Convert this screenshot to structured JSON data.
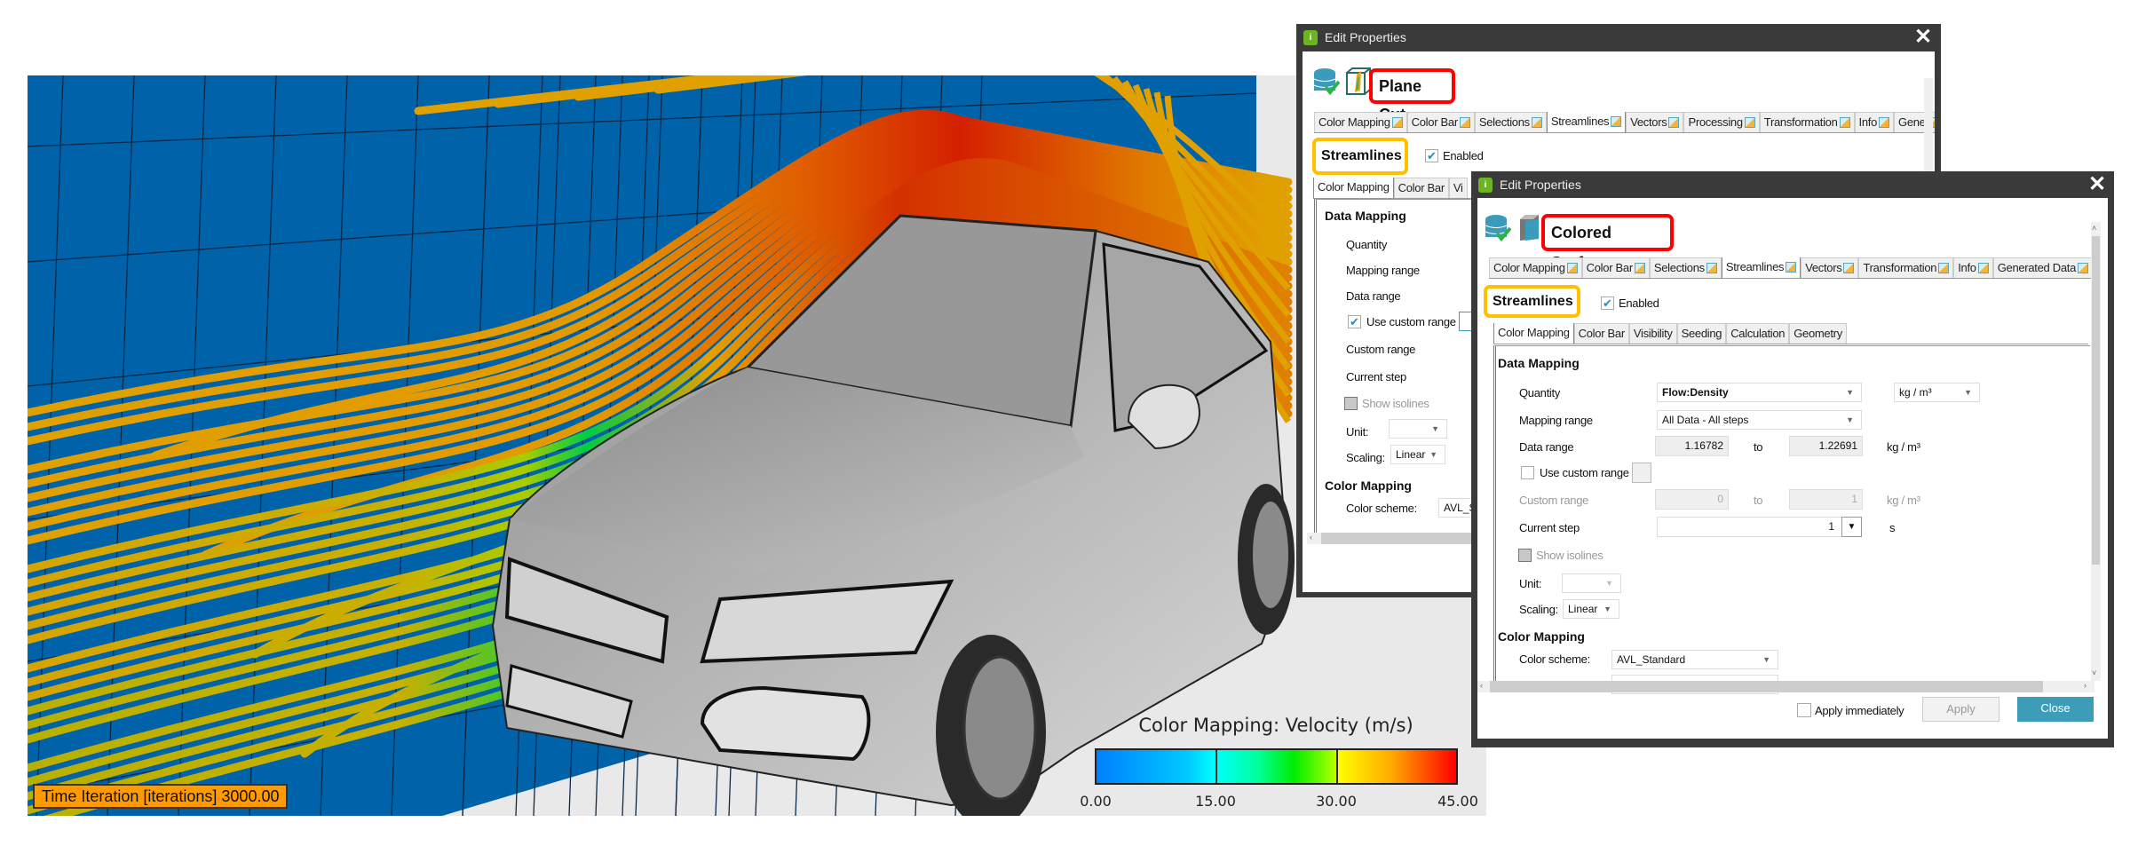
{
  "viewport": {
    "time_label": "Time Iteration [iterations] 3000.00",
    "color_bar": {
      "title": "Color Mapping: Velocity (m/s)",
      "ticks": [
        "0.00",
        "15.00",
        "30.00",
        "45.00"
      ],
      "range": [
        0,
        45
      ],
      "colors": [
        "#0080ff",
        "#00ffff",
        "#00ee00",
        "#ffff00",
        "#ff0000"
      ]
    }
  },
  "dialog_plane_cut": {
    "window_title": "Edit Properties",
    "object_title": "Plane Cut",
    "tabs": [
      {
        "label": "Color Mapping",
        "active": false
      },
      {
        "label": "Color Bar",
        "active": false
      },
      {
        "label": "Selections",
        "active": false
      },
      {
        "label": "Streamlines",
        "active": true
      },
      {
        "label": "Vectors",
        "active": false
      },
      {
        "label": "Processing",
        "active": false
      },
      {
        "label": "Transformation",
        "active": false
      },
      {
        "label": "Info",
        "active": false
      },
      {
        "label": "Gene",
        "active": false
      }
    ],
    "section_title": "Streamlines",
    "enabled_label": "Enabled",
    "enabled": true,
    "subtabs": [
      "Color Mapping",
      "Color Bar",
      "Vi"
    ],
    "data_mapping_heading": "Data Mapping",
    "quantity_label": "Quantity",
    "mapping_range_label": "Mapping range",
    "data_range_label": "Data range",
    "use_custom_range_label": "Use custom range",
    "use_custom_range": true,
    "custom_range_label": "Custom range",
    "current_step_label": "Current step",
    "show_isolines_label": "Show isolines",
    "unit_label": "Unit:",
    "scaling_label": "Scaling:",
    "scaling_value": "Linear",
    "color_mapping_heading": "Color Mapping",
    "color_scheme_label": "Color scheme:",
    "color_scheme_value": "AVL_S"
  },
  "dialog_colored_surface": {
    "window_title": "Edit Properties",
    "object_title": "Colored Surface",
    "tabs": [
      {
        "label": "Color Mapping",
        "active": false
      },
      {
        "label": "Color Bar",
        "active": false
      },
      {
        "label": "Selections",
        "active": false
      },
      {
        "label": "Streamlines",
        "active": true
      },
      {
        "label": "Vectors",
        "active": false
      },
      {
        "label": "Transformation",
        "active": false
      },
      {
        "label": "Info",
        "active": false
      },
      {
        "label": "Generated Data",
        "active": false
      }
    ],
    "section_title": "Streamlines",
    "enabled_label": "Enabled",
    "enabled": true,
    "subtabs": [
      "Color Mapping",
      "Color Bar",
      "Visibility",
      "Seeding",
      "Calculation",
      "Geometry"
    ],
    "data_mapping_heading": "Data Mapping",
    "quantity_label": "Quantity",
    "quantity_value": "Flow:Density",
    "quantity_unit": "kg / m³",
    "mapping_range_label": "Mapping range",
    "mapping_range_value": "All Data - All steps",
    "data_range_label": "Data range",
    "data_range_min": "1.16782",
    "data_range_max": "1.22691",
    "to_label": "to",
    "unit_text": "kg / m³",
    "use_custom_range_label": "Use custom range",
    "use_custom_range": false,
    "custom_range_label": "Custom range",
    "custom_range_min": "0",
    "custom_range_max": "1",
    "current_step_label": "Current step",
    "current_step_value": "1",
    "current_step_unit": "s",
    "show_isolines_label": "Show isolines",
    "unit_label": "Unit:",
    "scaling_label": "Scaling:",
    "scaling_value": "Linear",
    "color_mapping_heading": "Color Mapping",
    "color_scheme_label": "Color scheme:",
    "color_scheme_value": "AVL_Standard",
    "apply_immediately_label": "Apply immediately",
    "apply_immediately": false,
    "apply_label": "Apply",
    "close_label": "Close",
    "accent_color": "#3d9cb7"
  },
  "highlight_colors": {
    "object_title_box": "#ff0000",
    "section_box": "#ffc000"
  }
}
